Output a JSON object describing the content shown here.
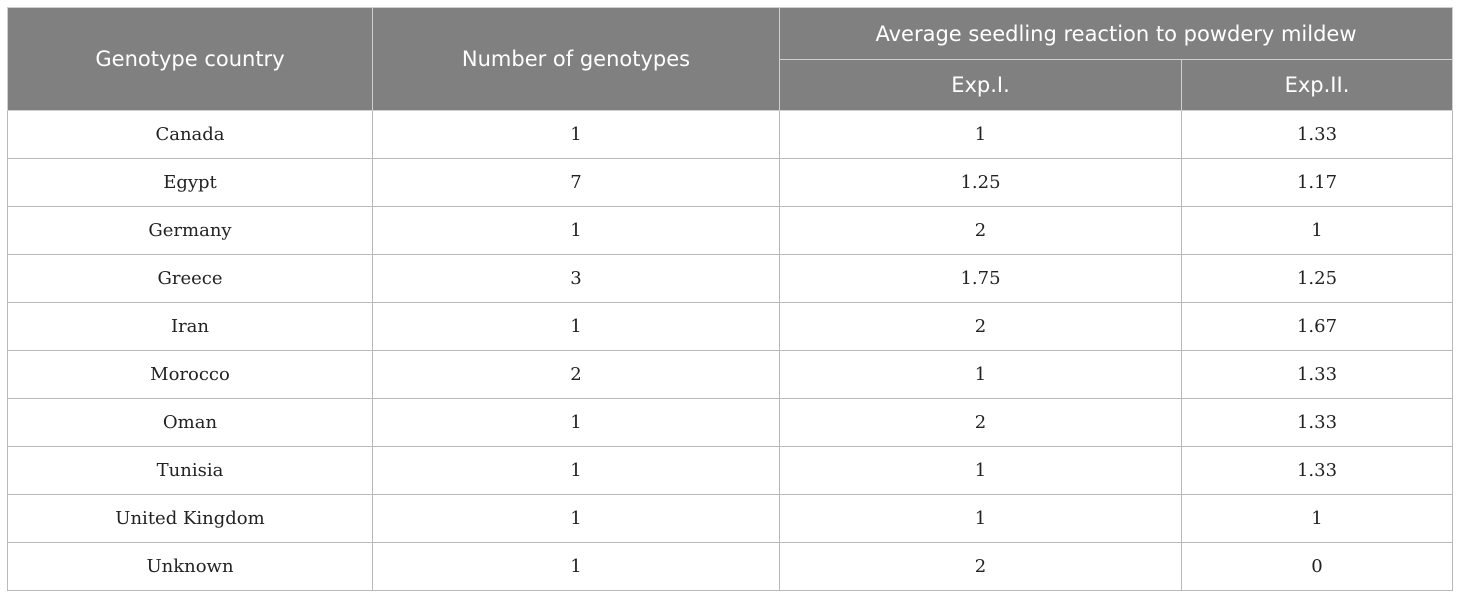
{
  "table": {
    "headers": {
      "country": "Genotype country",
      "number": "Number of genotypes",
      "reaction_group": "Average seedling reaction to powdery mildew",
      "exp1": "Exp.I.",
      "exp2": "Exp.II."
    },
    "rows": [
      [
        "Canada",
        "1",
        "1",
        "1.33"
      ],
      [
        "Egypt",
        "7",
        "1.25",
        "1.17"
      ],
      [
        "Germany",
        "1",
        "2",
        "1"
      ],
      [
        "Greece",
        "3",
        "1.75",
        "1.25"
      ],
      [
        "Iran",
        "1",
        "2",
        "1.67"
      ],
      [
        "Morocco",
        "2",
        "1",
        "1.33"
      ],
      [
        "Oman",
        "1",
        "2",
        "1.33"
      ],
      [
        "Tunisia",
        "1",
        "1",
        "1.33"
      ],
      [
        "United Kingdom",
        "1",
        "1",
        "1"
      ],
      [
        "Unknown",
        "1",
        "2",
        "0"
      ]
    ]
  },
  "colors": {
    "header_bg": "#808080",
    "header_text": "#ffffff",
    "grid": "#b9b9b9"
  }
}
